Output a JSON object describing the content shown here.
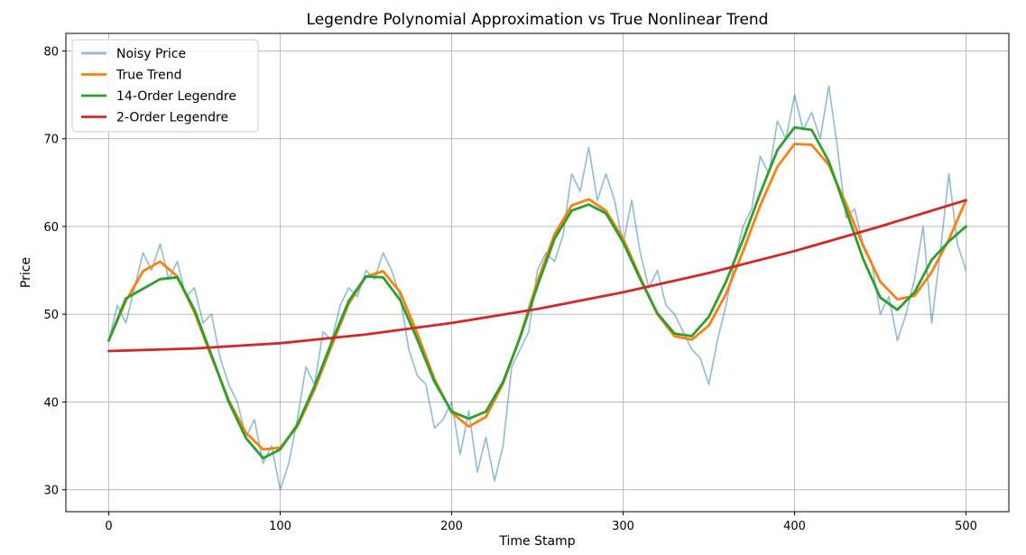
{
  "chart_data": {
    "type": "line",
    "title": "Legendre Polynomial Approximation vs True Nonlinear Trend",
    "xlabel": "Time Stamp",
    "ylabel": "Price",
    "xlim": [
      -25,
      525
    ],
    "ylim": [
      27.5,
      82
    ],
    "xticks": [
      0,
      100,
      200,
      300,
      400,
      500
    ],
    "yticks": [
      30,
      40,
      50,
      60,
      70,
      80
    ],
    "grid": true,
    "legend_position": "top-left",
    "colors": {
      "noisy": "#1f77b4",
      "true_trend": "#ff7f0e",
      "legendre14": "#2ca02c",
      "legendre2": "#d62728"
    },
    "series": [
      {
        "name": "Noisy Price",
        "color": "#1f77b4",
        "opacity": 0.5,
        "x": [
          0,
          5,
          10,
          15,
          20,
          25,
          30,
          35,
          40,
          45,
          50,
          55,
          60,
          65,
          70,
          75,
          80,
          85,
          90,
          95,
          100,
          105,
          110,
          115,
          120,
          125,
          130,
          135,
          140,
          145,
          150,
          155,
          160,
          165,
          170,
          175,
          180,
          185,
          190,
          195,
          200,
          205,
          210,
          215,
          220,
          225,
          230,
          235,
          240,
          245,
          250,
          255,
          260,
          265,
          270,
          275,
          280,
          285,
          290,
          295,
          300,
          305,
          310,
          315,
          320,
          325,
          330,
          335,
          340,
          345,
          350,
          355,
          360,
          365,
          370,
          375,
          380,
          385,
          390,
          395,
          400,
          405,
          410,
          415,
          420,
          425,
          430,
          435,
          440,
          445,
          450,
          455,
          460,
          465,
          470,
          475,
          480,
          485,
          490,
          495,
          500
        ],
        "y": [
          47,
          51,
          49,
          53,
          57,
          55,
          58,
          54,
          56,
          52,
          53,
          49,
          50,
          45,
          42,
          40,
          36,
          38,
          33,
          35,
          30,
          33,
          38,
          44,
          42,
          48,
          47,
          51,
          53,
          52,
          55,
          54,
          57,
          55,
          52,
          46,
          43,
          42,
          37,
          38,
          40,
          34,
          39,
          32,
          36,
          31,
          35,
          44,
          46,
          48,
          55,
          57,
          56,
          59,
          66,
          64,
          69,
          63,
          66,
          63,
          58,
          63,
          57,
          53,
          55,
          51,
          50,
          48,
          46,
          45,
          42,
          47,
          51,
          56,
          60,
          62,
          68,
          66,
          72,
          70,
          75,
          71,
          73,
          70,
          76,
          69,
          61,
          62,
          58,
          56,
          50,
          52,
          47,
          50,
          54,
          60,
          49,
          57,
          66,
          58,
          55
        ]
      },
      {
        "name": "True Trend",
        "color": "#ff7f0e",
        "x": [
          0,
          10,
          20,
          30,
          40,
          50,
          60,
          70,
          80,
          90,
          100,
          110,
          120,
          130,
          140,
          150,
          160,
          170,
          180,
          190,
          200,
          210,
          220,
          230,
          240,
          250,
          260,
          270,
          280,
          290,
          300,
          310,
          320,
          330,
          340,
          350,
          360,
          370,
          380,
          390,
          400,
          410,
          420,
          430,
          440,
          450,
          460,
          470,
          480,
          490,
          500
        ],
        "y": [
          47,
          51.5,
          54.9,
          56,
          54.3,
          50.2,
          45.1,
          40.2,
          36.5,
          34.6,
          34.8,
          37.2,
          41.4,
          46.4,
          51.2,
          54.3,
          54.9,
          52.5,
          47.8,
          42.6,
          38.8,
          37.2,
          38.3,
          42.1,
          47.5,
          53.7,
          59.1,
          62.4,
          63.1,
          61.8,
          58.6,
          54.2,
          50,
          47.5,
          47.1,
          48.7,
          52.3,
          57.2,
          62.4,
          66.8,
          69.4,
          69.3,
          67,
          62.6,
          57.8,
          53.7,
          51.7,
          52.1,
          54.8,
          58.5,
          63
        ]
      },
      {
        "name": "14-Order Legendre",
        "color": "#2ca02c",
        "x": [
          0,
          10,
          20,
          30,
          40,
          50,
          60,
          70,
          80,
          90,
          100,
          110,
          120,
          130,
          140,
          150,
          160,
          170,
          180,
          190,
          200,
          210,
          220,
          230,
          240,
          250,
          260,
          270,
          280,
          290,
          300,
          310,
          320,
          330,
          340,
          350,
          360,
          370,
          380,
          390,
          400,
          410,
          420,
          430,
          440,
          450,
          460,
          470,
          480,
          490,
          500
        ],
        "y": [
          47,
          51.8,
          52.9,
          54,
          54.2,
          50.5,
          45.3,
          40,
          35.9,
          33.6,
          34.6,
          37.4,
          41.8,
          46.8,
          51.5,
          54.3,
          54.2,
          51.6,
          47.1,
          42.3,
          38.9,
          38.1,
          38.9,
          42.3,
          47.4,
          53.2,
          58.6,
          61.8,
          62.5,
          61.5,
          58.2,
          54,
          50.1,
          47.8,
          47.5,
          49.7,
          53.7,
          58.5,
          63.8,
          68.7,
          71.3,
          71,
          67.4,
          61.9,
          56.3,
          51.9,
          50.5,
          52.5,
          56.2,
          58.3,
          60
        ]
      },
      {
        "name": "2-Order Legendre",
        "color": "#d62728",
        "x": [
          0,
          50,
          100,
          150,
          200,
          250,
          300,
          350,
          400,
          450,
          500
        ],
        "y": [
          45.8,
          46.1,
          46.7,
          47.7,
          49,
          50.6,
          52.5,
          54.7,
          57.2,
          60,
          63
        ]
      }
    ]
  }
}
